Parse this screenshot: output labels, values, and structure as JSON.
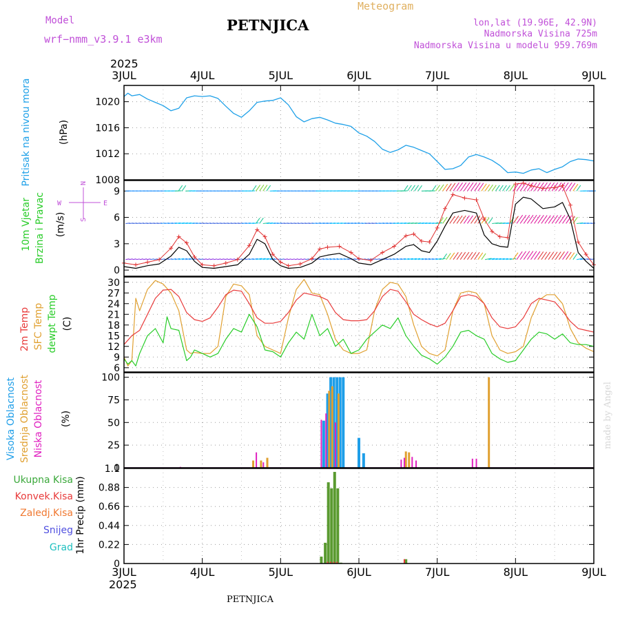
{
  "header": {
    "model_label": "Model",
    "model_name": "wrf−nmm_v3.9.1  e3km",
    "station": "PETNJICA",
    "meteogram": "Meteogram",
    "lonlat": "lon,lat (19.96E, 42.9N)",
    "altitude": "Nadmorska Visina 725m",
    "model_altitude": "Nadmorska Visina u modelu 959.769m",
    "year_top": "2025",
    "year_bottom": "2025",
    "footer_station": "PETNJICA",
    "credit": "made by Angel"
  },
  "colors": {
    "pressure": "#1ea0e8",
    "wind_speed": "#000000",
    "gust": "#e03030",
    "temp2m": "#e83a3a",
    "sfc_temp": "#e0a030",
    "dewpt": "#28cc28",
    "high_cloud": "#1e9ee8",
    "mid_cloud": "#e0a030",
    "low_cloud": "#e020c0",
    "precip_total": "#3aa83a",
    "precip_conv": "#e83a3a",
    "precip_frozen": "#f07830",
    "snow": "#5050e0",
    "graupel": "#20c0c0",
    "purple_text": "#c050d8",
    "gold_text": "#e0b060"
  },
  "x_axis": {
    "labels": [
      "3JUL",
      "4JUL",
      "5JUL",
      "6JUL",
      "7JUL",
      "8JUL",
      "9JUL"
    ],
    "days": [
      0,
      1,
      2,
      3,
      4,
      5,
      6
    ]
  },
  "compass": {
    "n": "N",
    "w": "W",
    "e": "E",
    "s": "S"
  },
  "chart_data": [
    {
      "type": "line",
      "panel": "pressure",
      "ylabel_left": "Pritisak na nivou mora",
      "ylabel": "(hPa)",
      "ylim": [
        1008,
        1022.5
      ],
      "yticks": [
        1008,
        1012,
        1016,
        1020
      ],
      "x_days": [
        0,
        0.05,
        0.1,
        0.2,
        0.3,
        0.4,
        0.5,
        0.6,
        0.7,
        0.8,
        0.9,
        1.0,
        1.1,
        1.2,
        1.3,
        1.4,
        1.5,
        1.6,
        1.7,
        1.8,
        1.9,
        2.0,
        2.1,
        2.2,
        2.3,
        2.4,
        2.5,
        2.6,
        2.7,
        2.8,
        2.9,
        3.0,
        3.1,
        3.2,
        3.3,
        3.4,
        3.5,
        3.6,
        3.7,
        3.8,
        3.9,
        4.0,
        4.1,
        4.2,
        4.3,
        4.4,
        4.5,
        4.6,
        4.7,
        4.8,
        4.9,
        5.0,
        5.1,
        5.2,
        5.3,
        5.4,
        5.5,
        5.6,
        5.7,
        5.8,
        5.9,
        6.0
      ],
      "values": [
        1020.8,
        1021.3,
        1020.9,
        1021.1,
        1020.4,
        1019.9,
        1019.4,
        1018.6,
        1019.0,
        1020.6,
        1020.9,
        1020.8,
        1020.9,
        1020.5,
        1019.3,
        1018.2,
        1017.6,
        1018.6,
        1019.9,
        1020.1,
        1020.2,
        1020.6,
        1019.5,
        1017.7,
        1016.9,
        1017.4,
        1017.6,
        1017.2,
        1016.7,
        1016.5,
        1016.2,
        1015.2,
        1014.7,
        1013.9,
        1012.7,
        1012.2,
        1012.6,
        1013.3,
        1013.0,
        1012.5,
        1012.0,
        1010.8,
        1009.6,
        1009.7,
        1010.2,
        1011.5,
        1011.9,
        1011.5,
        1011.0,
        1010.2,
        1009.1,
        1009.2,
        1009.0,
        1009.5,
        1009.7,
        1009.1,
        1009.6,
        1010.0,
        1010.8,
        1011.2,
        1011.1,
        1010.9
      ]
    },
    {
      "type": "line",
      "panel": "wind",
      "ylabel_left": "10m Vjetar",
      "ylabel_left2": "Brzina i Pravac",
      "ylabel": "(m/s)",
      "ylim": [
        -0.7,
        10.2
      ],
      "yticks": [
        0,
        3,
        6,
        9
      ],
      "barb_rows": [
        1.2,
        5.3,
        9.0
      ],
      "series": [
        {
          "name": "wind_speed",
          "x": [
            0,
            0.15,
            0.3,
            0.45,
            0.6,
            0.7,
            0.8,
            0.9,
            1.0,
            1.15,
            1.3,
            1.45,
            1.6,
            1.7,
            1.8,
            1.9,
            2.0,
            2.1,
            2.25,
            2.4,
            2.5,
            2.6,
            2.75,
            2.9,
            3.0,
            3.15,
            3.3,
            3.45,
            3.6,
            3.7,
            3.8,
            3.9,
            4.0,
            4.1,
            4.2,
            4.35,
            4.5,
            4.6,
            4.7,
            4.8,
            4.9,
            5.0,
            5.1,
            5.2,
            5.35,
            5.5,
            5.6,
            5.7,
            5.8,
            5.9,
            6.0
          ],
          "values": [
            0.4,
            0.2,
            0.5,
            0.7,
            1.6,
            2.6,
            2.2,
            1.0,
            0.3,
            0.2,
            0.4,
            0.6,
            1.8,
            3.5,
            3.0,
            1.2,
            0.5,
            0.2,
            0.3,
            0.8,
            1.5,
            1.7,
            1.9,
            1.3,
            0.8,
            0.6,
            1.2,
            1.8,
            2.7,
            2.9,
            2.2,
            2.0,
            3.3,
            5.0,
            6.5,
            6.8,
            6.5,
            4.0,
            3.0,
            2.7,
            2.6,
            7.5,
            8.3,
            8.1,
            7.0,
            7.2,
            7.7,
            5.8,
            2.0,
            1.0,
            0.2
          ]
        },
        {
          "name": "gust",
          "x": [
            0,
            0.15,
            0.3,
            0.45,
            0.6,
            0.7,
            0.8,
            0.9,
            1.0,
            1.15,
            1.3,
            1.45,
            1.6,
            1.7,
            1.8,
            1.9,
            2.0,
            2.1,
            2.25,
            2.4,
            2.5,
            2.6,
            2.75,
            2.9,
            3.0,
            3.15,
            3.3,
            3.45,
            3.6,
            3.7,
            3.8,
            3.9,
            4.0,
            4.1,
            4.2,
            4.35,
            4.5,
            4.6,
            4.7,
            4.8,
            4.9,
            5.0,
            5.1,
            5.2,
            5.35,
            5.5,
            5.6,
            5.7,
            5.8,
            5.9,
            6.0
          ],
          "values": [
            0.8,
            0.6,
            0.9,
            1.2,
            2.5,
            3.8,
            3.1,
            1.5,
            0.6,
            0.5,
            0.8,
            1.2,
            2.8,
            4.6,
            3.8,
            1.8,
            0.9,
            0.5,
            0.7,
            1.3,
            2.4,
            2.6,
            2.7,
            2.0,
            1.3,
            1.1,
            2.0,
            2.7,
            3.9,
            4.1,
            3.3,
            3.2,
            4.8,
            7.0,
            8.6,
            8.2,
            8.0,
            5.8,
            4.4,
            3.8,
            3.7,
            9.8,
            9.9,
            9.6,
            9.3,
            9.4,
            9.6,
            7.4,
            3.2,
            1.8,
            0.6
          ]
        }
      ]
    },
    {
      "type": "line",
      "panel": "temperature",
      "ylabel_left": "2m Temp",
      "ylabel_left2": "SFC Temp",
      "ylabel_left3": "dewpt Temp",
      "ylabel": "(C)",
      "ylim": [
        4.8,
        31.5
      ],
      "yticks": [
        6,
        9,
        12,
        15,
        18,
        21,
        24,
        27,
        30
      ],
      "series": [
        {
          "name": "2m Temp",
          "x": [
            0,
            0.1,
            0.2,
            0.3,
            0.4,
            0.5,
            0.6,
            0.7,
            0.8,
            0.9,
            1.0,
            1.1,
            1.2,
            1.3,
            1.4,
            1.5,
            1.6,
            1.7,
            1.8,
            1.9,
            2.0,
            2.1,
            2.2,
            2.3,
            2.4,
            2.5,
            2.6,
            2.7,
            2.8,
            2.9,
            3.0,
            3.1,
            3.2,
            3.3,
            3.4,
            3.5,
            3.6,
            3.7,
            3.8,
            3.9,
            4.0,
            4.1,
            4.2,
            4.3,
            4.4,
            4.5,
            4.6,
            4.7,
            4.8,
            4.9,
            5.0,
            5.1,
            5.2,
            5.3,
            5.4,
            5.5,
            5.6,
            5.7,
            5.8,
            5.9,
            6.0
          ],
          "values": [
            12.5,
            15,
            16.5,
            21,
            25.5,
            27.8,
            28,
            26,
            21.5,
            19.5,
            19,
            20,
            23,
            26.5,
            27.8,
            27.5,
            24,
            20,
            18.5,
            18.5,
            19,
            21.5,
            25,
            27,
            26.5,
            26,
            25,
            21.5,
            19.5,
            19.2,
            19.2,
            19.5,
            22,
            26,
            28,
            27.5,
            24.5,
            21,
            19.5,
            18.3,
            17.5,
            18.5,
            22,
            26,
            26.5,
            26,
            24,
            20,
            17.5,
            17,
            17.5,
            20,
            24,
            25.5,
            25,
            24.5,
            22,
            19,
            17,
            16.5,
            16
          ]
        },
        {
          "name": "SFC Temp",
          "x": [
            0,
            0.05,
            0.1,
            0.15,
            0.2,
            0.3,
            0.4,
            0.5,
            0.6,
            0.7,
            0.8,
            0.85,
            0.9,
            1.0,
            1.1,
            1.2,
            1.3,
            1.4,
            1.5,
            1.6,
            1.7,
            1.8,
            1.9,
            2.0,
            2.1,
            2.2,
            2.3,
            2.4,
            2.5,
            2.6,
            2.7,
            2.8,
            2.9,
            3.0,
            3.1,
            3.2,
            3.3,
            3.4,
            3.5,
            3.6,
            3.7,
            3.8,
            3.9,
            4.0,
            4.1,
            4.2,
            4.3,
            4.4,
            4.5,
            4.6,
            4.7,
            4.8,
            4.9,
            5.0,
            5.1,
            5.2,
            5.3,
            5.4,
            5.5,
            5.6,
            5.7,
            5.8,
            5.9,
            6.0
          ],
          "values": [
            9,
            6.5,
            8,
            25.5,
            22,
            28,
            30.5,
            29.5,
            27,
            22,
            11,
            10,
            10.3,
            10,
            10,
            12,
            26,
            29.5,
            29,
            26.5,
            15,
            12,
            11,
            10,
            20,
            28,
            30.8,
            27,
            26.5,
            21,
            14,
            11,
            10,
            10,
            11,
            22,
            28,
            30,
            29.5,
            26,
            18,
            12,
            10,
            9.3,
            11,
            22,
            27,
            27.5,
            27,
            24,
            15,
            11,
            10,
            10.5,
            12,
            20,
            25,
            26.5,
            26.5,
            24,
            17,
            13,
            11.5,
            10.5
          ]
        },
        {
          "name": "dewpt Temp",
          "x": [
            0,
            0.05,
            0.1,
            0.15,
            0.2,
            0.3,
            0.4,
            0.5,
            0.55,
            0.6,
            0.7,
            0.8,
            0.85,
            0.9,
            1.0,
            1.1,
            1.2,
            1.3,
            1.4,
            1.5,
            1.6,
            1.7,
            1.8,
            1.9,
            2.0,
            2.1,
            2.2,
            2.3,
            2.4,
            2.5,
            2.6,
            2.7,
            2.8,
            2.9,
            3.0,
            3.1,
            3.2,
            3.3,
            3.4,
            3.5,
            3.6,
            3.7,
            3.8,
            3.9,
            4.0,
            4.1,
            4.2,
            4.3,
            4.4,
            4.5,
            4.6,
            4.7,
            4.8,
            4.9,
            5.0,
            5.1,
            5.2,
            5.3,
            5.4,
            5.5,
            5.6,
            5.7,
            5.8,
            5.9,
            6.0
          ],
          "values": [
            8.5,
            7,
            8,
            6.5,
            10,
            15,
            17,
            13,
            20.3,
            17,
            16.5,
            8,
            9,
            11,
            10,
            9,
            10,
            14,
            17,
            16,
            21,
            17.5,
            11,
            10.5,
            9,
            13,
            16,
            14,
            21,
            15,
            17,
            12,
            14,
            10,
            11,
            14,
            16,
            18,
            17,
            20,
            15,
            12,
            9.5,
            8.5,
            7,
            9,
            12,
            16,
            16.5,
            15,
            14,
            10,
            8.5,
            7.5,
            8,
            11,
            14,
            16,
            15.5,
            14,
            15.5,
            13,
            12.5,
            12.5,
            12
          ]
        }
      ]
    },
    {
      "type": "bar",
      "panel": "clouds",
      "ylabel_left": "Visoka Oblacnost",
      "ylabel_left2": "Srednja Oblacnost",
      "ylabel_left3": "Niska Oblacnost",
      "ylabel": "(%)",
      "ylim": [
        0,
        105
      ],
      "yticks": [
        0,
        25,
        50,
        75,
        100
      ],
      "series": [
        {
          "name": "Visoka Oblacnost",
          "x": [
            2.55,
            2.6,
            2.64,
            2.68,
            2.72,
            2.76,
            2.8,
            3.0,
            3.06
          ],
          "values": [
            52,
            82,
            100,
            100,
            100,
            100,
            100,
            33,
            16
          ]
        },
        {
          "name": "Srednja Oblacnost",
          "x": [
            1.65,
            1.75,
            1.83,
            2.62,
            2.66,
            2.74,
            3.6,
            3.64,
            4.66
          ],
          "values": [
            8,
            8,
            11,
            85,
            90,
            82,
            18,
            17,
            100
          ]
        },
        {
          "name": "Niska Oblacnost",
          "x": [
            0.72,
            1.69,
            1.78,
            2.52,
            2.58,
            2.7,
            3.54,
            3.58,
            3.68,
            3.73,
            4.45,
            4.5
          ],
          "values": [
            1,
            17,
            6,
            53,
            60,
            50,
            9,
            11,
            12,
            8,
            10,
            10
          ]
        }
      ]
    },
    {
      "type": "bar",
      "panel": "precip",
      "ylabel_left": "Ukupna Kisa",
      "ylabel_left2": "Konvek.Kisa",
      "ylabel_left3": "Zaledj.Kisa",
      "ylabel_left4": "Snijeg",
      "ylabel_left5": "Grad",
      "ylabel": "1hr Precip (mm)",
      "ylim": [
        0,
        1.1
      ],
      "yticks": [
        0,
        0.22,
        0.44,
        0.66,
        0.88,
        1.1
      ],
      "series": [
        {
          "name": "Ukupna Kisa",
          "x": [
            2.52,
            2.57,
            2.61,
            2.65,
            2.69,
            2.73,
            2.77,
            3.6
          ],
          "values": [
            0.08,
            0.24,
            0.94,
            0.87,
            1.06,
            0.87,
            0.01,
            0.05
          ]
        },
        {
          "name": "Konvek.Kisa",
          "x": [
            2.6,
            2.64,
            2.68,
            2.72,
            3.58
          ],
          "values": [
            0.02,
            0.02,
            0.02,
            0.02,
            0.05
          ]
        }
      ]
    }
  ]
}
